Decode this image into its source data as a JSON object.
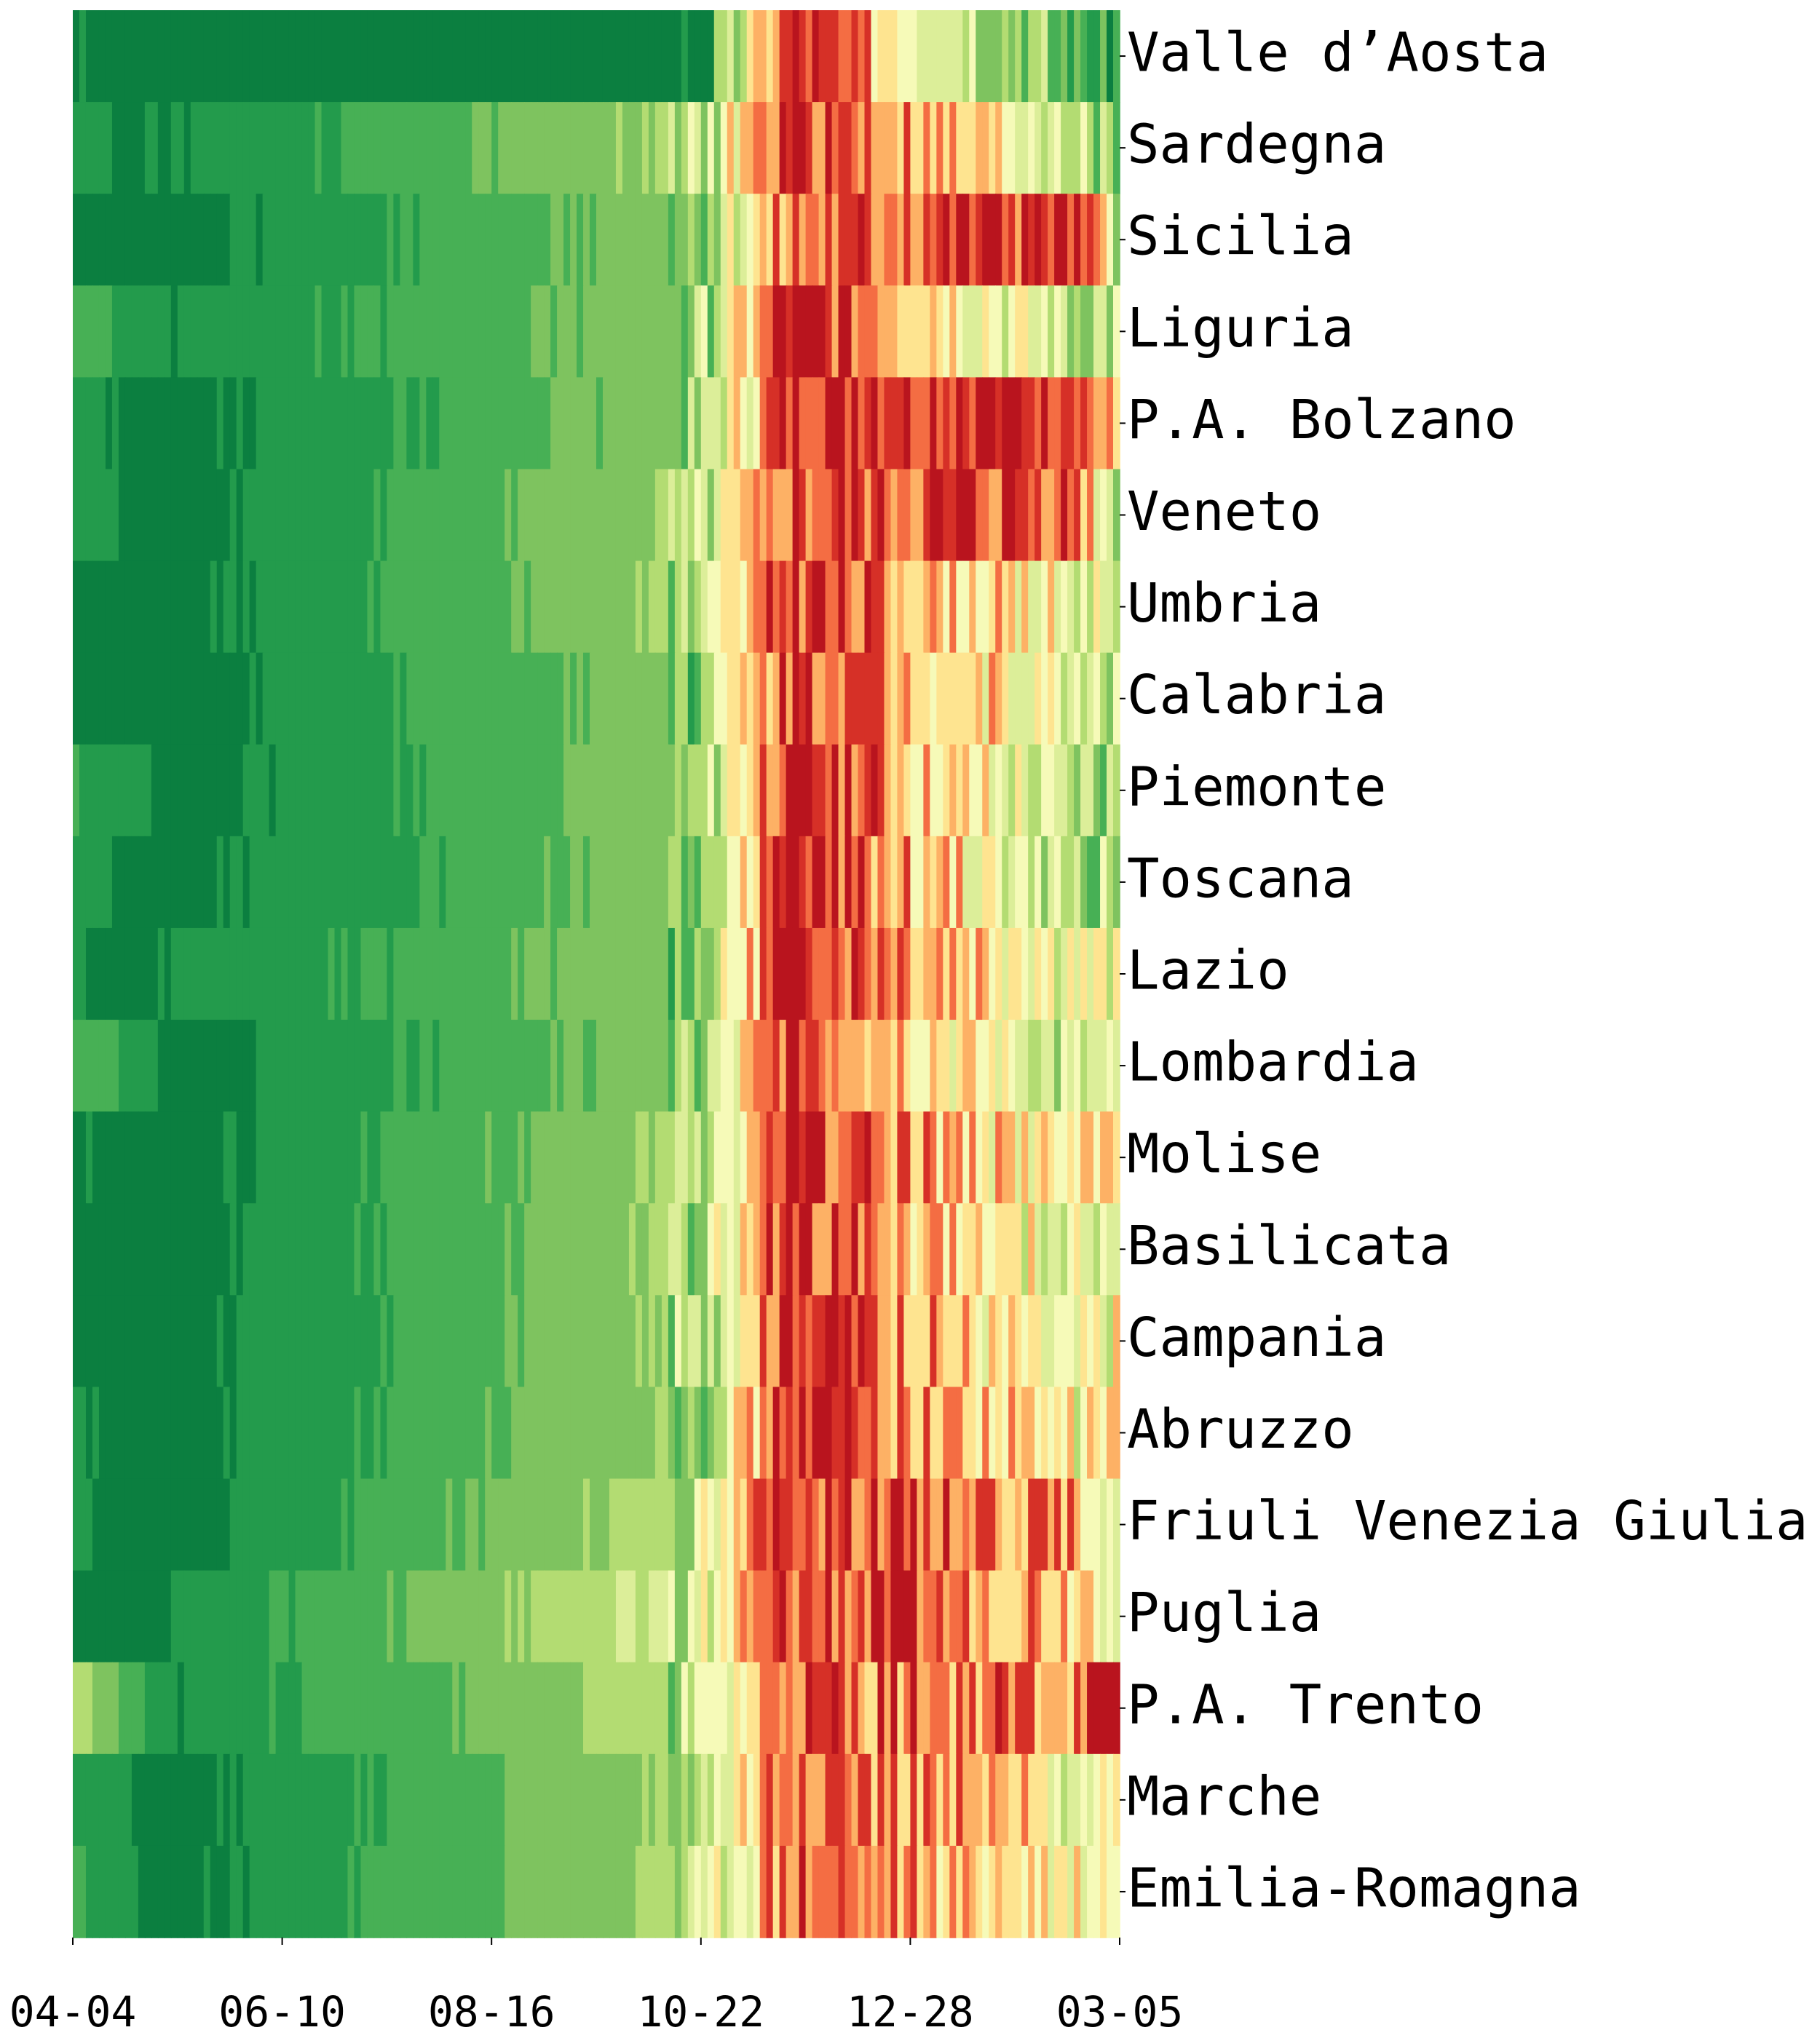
{
  "chart_data": {
    "type": "heatmap",
    "title": "",
    "xlabel": "",
    "ylabel": "",
    "x_tick_labels": [
      "04-04",
      "06-10",
      "08-16",
      "10-22",
      "12-28",
      "03-05"
    ],
    "x_tick_day_offsets": [
      0,
      67,
      134,
      201,
      268,
      335
    ],
    "rows": [
      "Valle d’Aosta",
      "Sardegna",
      "Sicilia",
      "Liguria",
      "P.A. Bolzano",
      "Veneto",
      "Umbria",
      "Calabria",
      "Piemonte",
      "Toscana",
      "Lazio",
      "Lombardia",
      "Molise",
      "Basilicata",
      "Campania",
      "Abruzzo",
      "Friuli Venezia Giulia",
      "Puglia",
      "P.A. Trento",
      "Marche",
      "Emilia-Romagna"
    ],
    "colormap": [
      "#0b7f40",
      "#239b4c",
      "#47b055",
      "#7ec35f",
      "#b3dc72",
      "#dcee99",
      "#f6fab8",
      "#fee490",
      "#fdb165",
      "#f46d43",
      "#d63027",
      "#b9141e"
    ],
    "color_scale": {
      "min": 0,
      "max": 1,
      "low_color": "green",
      "high_color": "red"
    },
    "value_key_days": [
      0,
      20,
      30,
      200,
      230,
      320,
      336
    ],
    "row_profiles": [
      [
        0.05,
        0.0,
        0.0,
        0.0,
        0.95,
        0.2,
        0.1
      ],
      [
        0.1,
        0.02,
        0.05,
        0.35,
        0.95,
        0.45,
        0.2
      ],
      [
        0.0,
        0.0,
        0.0,
        0.3,
        0.8,
        0.95,
        0.4
      ],
      [
        0.2,
        0.1,
        0.05,
        0.3,
        1.0,
        0.4,
        0.4
      ],
      [
        0.1,
        0.02,
        0.0,
        0.3,
        0.95,
        1.0,
        0.6
      ],
      [
        0.1,
        0.02,
        0.0,
        0.35,
        0.85,
        0.9,
        0.3
      ],
      [
        0.0,
        0.0,
        0.0,
        0.35,
        0.95,
        0.5,
        0.5
      ],
      [
        0.0,
        0.0,
        0.0,
        0.3,
        0.95,
        0.5,
        0.45
      ],
      [
        0.15,
        0.05,
        0.0,
        0.3,
        1.0,
        0.35,
        0.35
      ],
      [
        0.1,
        0.02,
        0.0,
        0.3,
        1.0,
        0.35,
        0.4
      ],
      [
        0.05,
        0.0,
        0.05,
        0.3,
        1.0,
        0.55,
        0.5
      ],
      [
        0.2,
        0.1,
        0.0,
        0.3,
        0.95,
        0.4,
        0.4
      ],
      [
        0.05,
        0.0,
        0.0,
        0.35,
        0.95,
        0.55,
        0.7
      ],
      [
        0.0,
        0.0,
        0.0,
        0.35,
        0.95,
        0.45,
        0.6
      ],
      [
        0.0,
        0.0,
        0.0,
        0.35,
        1.0,
        0.45,
        0.55
      ],
      [
        0.05,
        0.0,
        0.0,
        0.35,
        0.95,
        0.55,
        0.65
      ],
      [
        0.05,
        0.0,
        0.0,
        0.4,
        0.95,
        0.75,
        0.5
      ],
      [
        0.05,
        0.0,
        0.05,
        0.45,
        0.9,
        0.75,
        0.6
      ],
      [
        0.4,
        0.15,
        0.05,
        0.4,
        0.85,
        0.8,
        1.0
      ],
      [
        0.15,
        0.05,
        0.0,
        0.35,
        0.9,
        0.55,
        0.55
      ],
      [
        0.15,
        0.05,
        0.0,
        0.35,
        0.85,
        0.6,
        0.6
      ]
    ],
    "grid": false,
    "legend": "none"
  }
}
